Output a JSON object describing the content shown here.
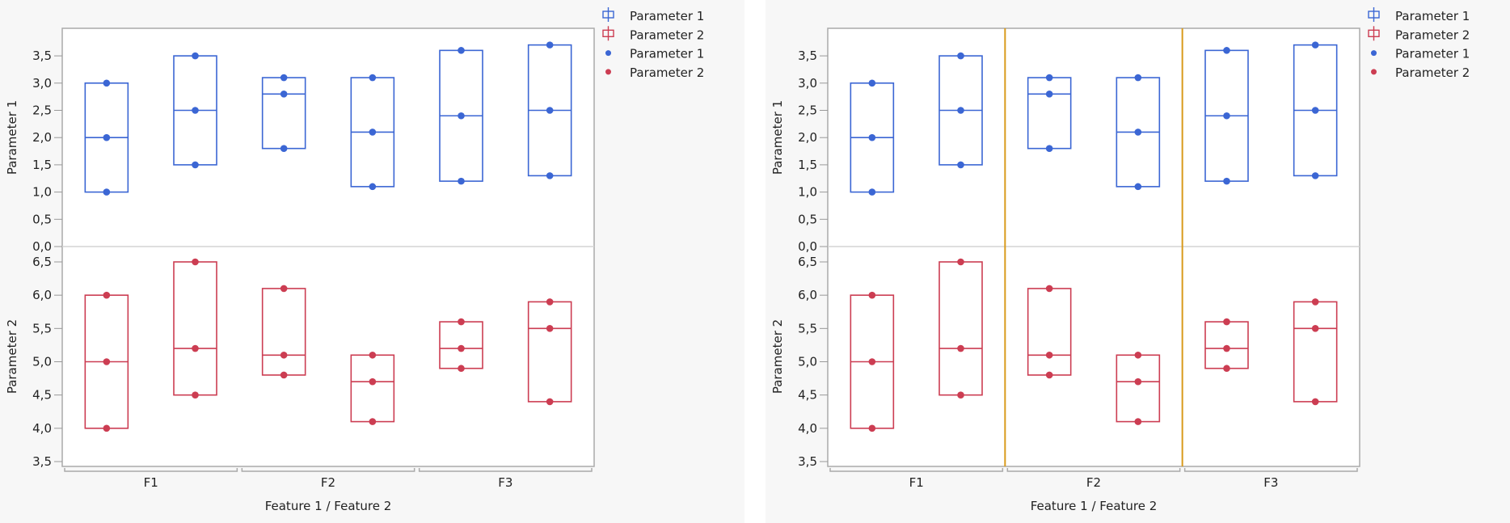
{
  "chart_data": [
    {
      "type": "box",
      "xlabel": "Feature 1 / Feature 2",
      "groups": [
        "F1",
        "F2",
        "F3"
      ],
      "boxes_per_group": 2,
      "reference_lines": false,
      "legend_placement": "right",
      "legend": [
        {
          "label": "Parameter 1",
          "marker": "box",
          "color": "#3b66d4"
        },
        {
          "label": "Parameter 2",
          "marker": "box",
          "color": "#cc3d52"
        },
        {
          "label": "Parameter 1",
          "marker": "dot",
          "color": "#3b66d4"
        },
        {
          "label": "Parameter 2",
          "marker": "dot",
          "color": "#cc3d52"
        }
      ],
      "panels": [
        {
          "ylabel": "Parameter 1",
          "color": "#3b66d4",
          "ylim": [
            0.0,
            4.0
          ],
          "ticks": [
            "0,0",
            "0,5",
            "1,0",
            "1,5",
            "2,0",
            "2,5",
            "3,0",
            "3,5"
          ],
          "tick_values": [
            0,
            0.5,
            1,
            1.5,
            2,
            2.5,
            3,
            3.5
          ],
          "boxes": [
            [
              1.0,
              2.0,
              3.0
            ],
            [
              1.5,
              2.5,
              3.5
            ],
            [
              1.8,
              2.8,
              3.1
            ],
            [
              1.1,
              2.1,
              3.1
            ],
            [
              1.2,
              2.4,
              3.6
            ],
            [
              1.3,
              2.5,
              3.7
            ]
          ]
        },
        {
          "ylabel": "Parameter 2",
          "color": "#cc3d52",
          "ylim": [
            3.4,
            6.6
          ],
          "ticks": [
            "3,5",
            "4,0",
            "4,5",
            "5,0",
            "5,5",
            "6,0",
            "6,5"
          ],
          "tick_values": [
            3.5,
            4,
            4.5,
            5,
            5.5,
            6,
            6.5
          ],
          "boxes": [
            [
              4.0,
              5.0,
              6.0
            ],
            [
              4.5,
              5.2,
              6.5
            ],
            [
              4.8,
              5.1,
              6.1
            ],
            [
              4.1,
              4.7,
              5.1
            ],
            [
              4.9,
              5.2,
              5.6
            ],
            [
              4.4,
              5.5,
              5.9
            ]
          ]
        }
      ]
    },
    {
      "type": "box",
      "xlabel": "Feature 1 / Feature 2",
      "groups": [
        "F1",
        "F2",
        "F3"
      ],
      "boxes_per_group": 2,
      "reference_lines": true,
      "reference_line_color": "#d99a1c",
      "legend_placement": "right",
      "legend": [
        {
          "label": "Parameter 1",
          "marker": "box",
          "color": "#3b66d4"
        },
        {
          "label": "Parameter 2",
          "marker": "box",
          "color": "#cc3d52"
        },
        {
          "label": "Parameter 1",
          "marker": "dot",
          "color": "#3b66d4"
        },
        {
          "label": "Parameter 2",
          "marker": "dot",
          "color": "#cc3d52"
        }
      ],
      "panels": [
        {
          "ylabel": "Parameter 1",
          "color": "#3b66d4",
          "ylim": [
            0.0,
            4.0
          ],
          "ticks": [
            "0,0",
            "0,5",
            "1,0",
            "1,5",
            "2,0",
            "2,5",
            "3,0",
            "3,5"
          ],
          "tick_values": [
            0,
            0.5,
            1,
            1.5,
            2,
            2.5,
            3,
            3.5
          ],
          "boxes": [
            [
              1.0,
              2.0,
              3.0
            ],
            [
              1.5,
              2.5,
              3.5
            ],
            [
              1.8,
              2.8,
              3.1
            ],
            [
              1.1,
              2.1,
              3.1
            ],
            [
              1.2,
              2.4,
              3.6
            ],
            [
              1.3,
              2.5,
              3.7
            ]
          ]
        },
        {
          "ylabel": "Parameter 2",
          "color": "#cc3d52",
          "ylim": [
            3.4,
            6.6
          ],
          "ticks": [
            "3,5",
            "4,0",
            "4,5",
            "5,0",
            "5,5",
            "6,0",
            "6,5"
          ],
          "tick_values": [
            3.5,
            4,
            4.5,
            5,
            5.5,
            6,
            6.5
          ],
          "boxes": [
            [
              4.0,
              5.0,
              6.0
            ],
            [
              4.5,
              5.2,
              6.5
            ],
            [
              4.8,
              5.1,
              6.1
            ],
            [
              4.1,
              4.7,
              5.1
            ],
            [
              4.9,
              5.2,
              5.6
            ],
            [
              4.4,
              5.5,
              5.9
            ]
          ]
        }
      ]
    }
  ]
}
